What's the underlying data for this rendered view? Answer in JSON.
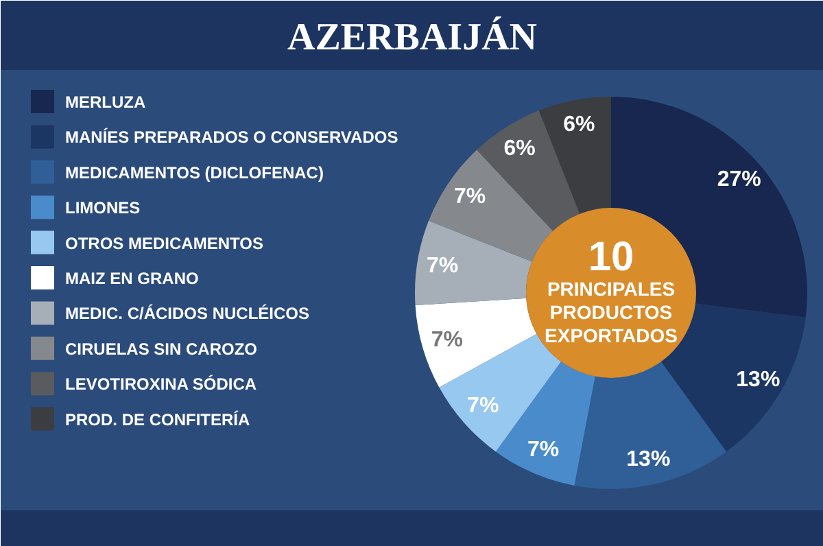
{
  "chart_data": {
    "type": "donut",
    "title": "AZERBAIJÁN",
    "categories": [
      "MERLUZA",
      "MANÍES PREPARADOS O CONSERVADOS",
      "MEDICAMENTOS (DICLOFENAC)",
      "LIMONES",
      "OTROS MEDICAMENTOS",
      "MAIZ EN GRANO",
      "MEDIC. C/ÁCIDOS NUCLÉICOS",
      "CIRUELAS SIN CAROZO",
      "LEVOTIROXINA SÓDICA",
      "PROD. DE CONFITERÍA"
    ],
    "values": [
      27,
      13,
      13,
      7,
      7,
      7,
      7,
      7,
      6,
      6
    ],
    "colors": [
      "#18274f",
      "#1b3663",
      "#2f5f96",
      "#4a8ccb",
      "#97c8ef",
      "#ffffff",
      "#a6aeb8",
      "#85898e",
      "#595b5e",
      "#3c3d40"
    ],
    "value_labels": [
      "27%",
      "13%",
      "13%",
      "7%",
      "7%",
      "7%",
      "7%",
      "7%",
      "6%",
      "6%"
    ],
    "legend": "left",
    "annotations": [
      "10",
      "PRINCIPALES PRODUCTOS EXPORTADOS"
    ]
  }
}
